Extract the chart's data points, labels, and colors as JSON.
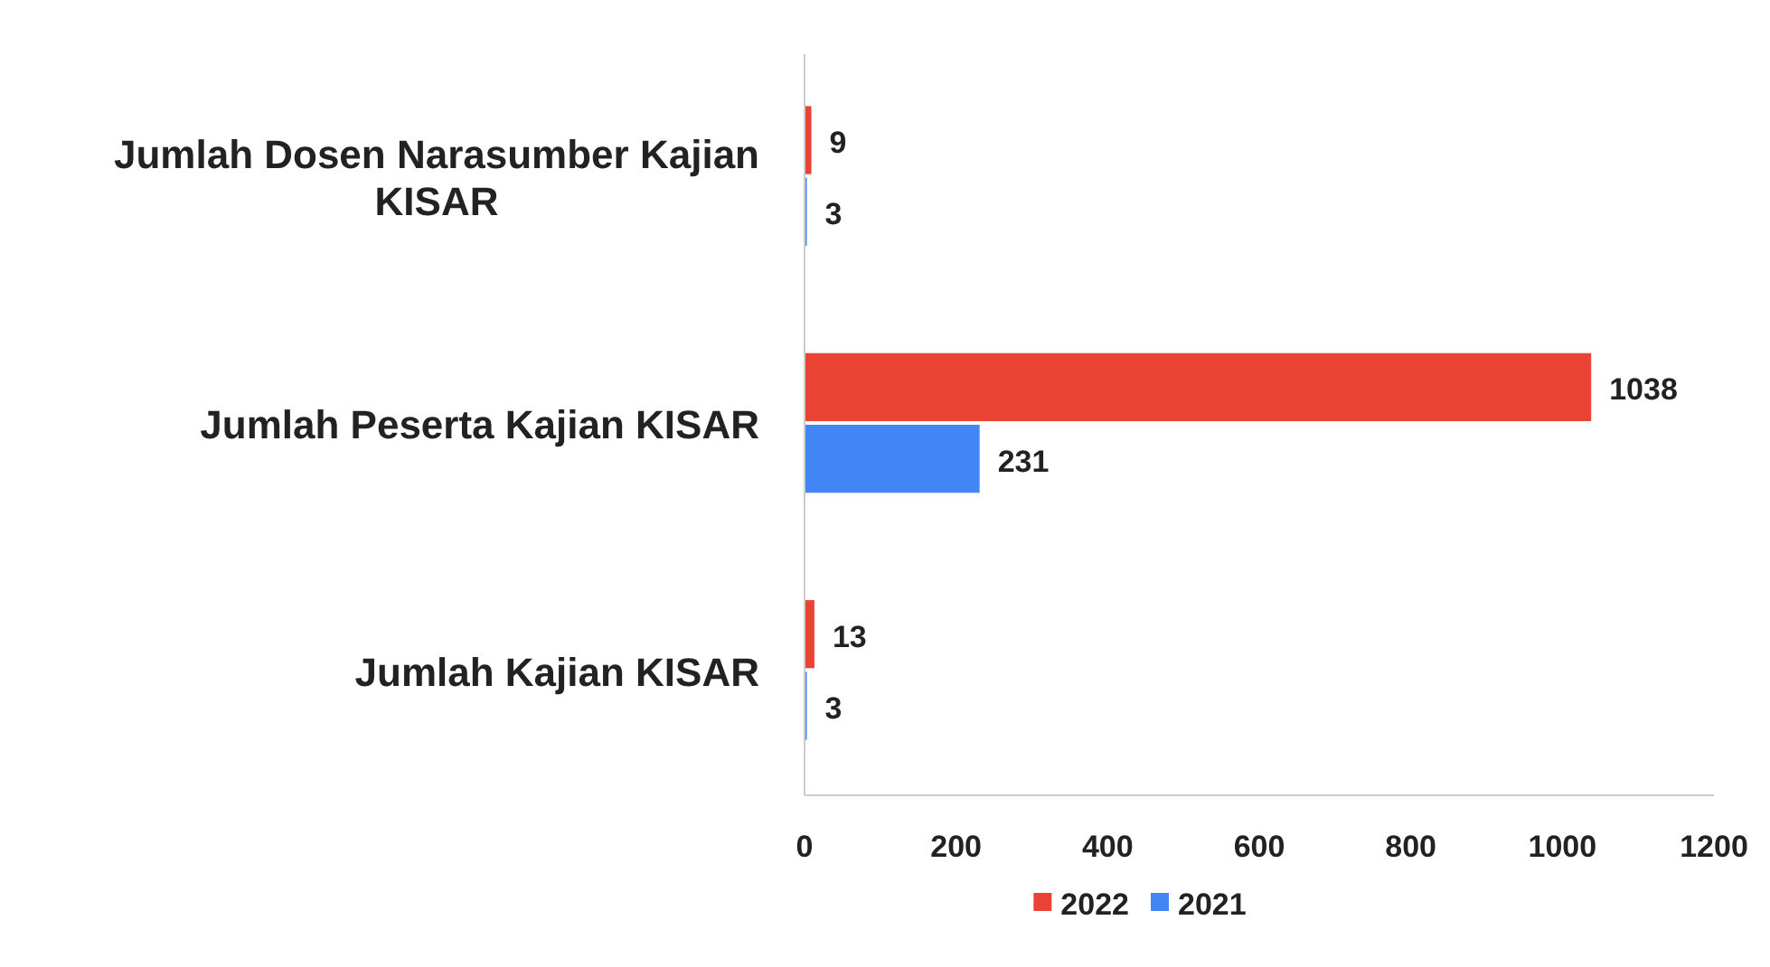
{
  "chart_data": {
    "type": "bar",
    "orientation": "horizontal",
    "categories": [
      "Jumlah Dosen Narasumber Kajian KISAR",
      "Jumlah Peserta Kajian KISAR",
      "Jumlah Kajian KISAR"
    ],
    "series": [
      {
        "name": "2022",
        "color": "#ea4335",
        "values": [
          9,
          1038,
          13
        ]
      },
      {
        "name": "2021",
        "color": "#4285f4",
        "values": [
          3,
          231,
          3
        ]
      }
    ],
    "xlim": [
      0,
      1200
    ],
    "xticks": [
      0,
      200,
      400,
      600,
      800,
      1000,
      1200
    ],
    "data_labels": true,
    "legend": "bottom",
    "grid": false
  }
}
